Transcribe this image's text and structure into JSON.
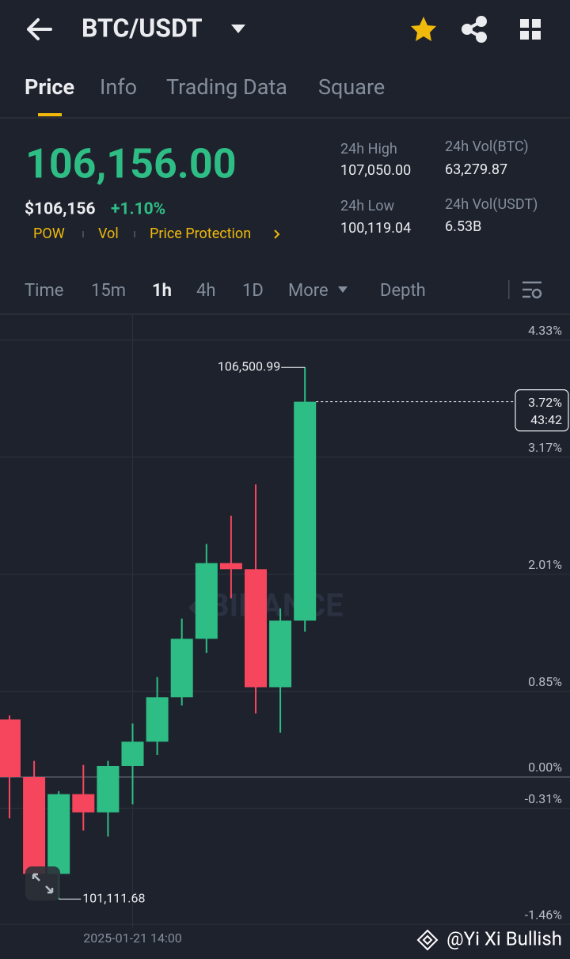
{
  "header": {
    "title": "BTC/USDT"
  },
  "tabs": [
    "Price",
    "Info",
    "Trading Data",
    "Square"
  ],
  "price": {
    "last": "106,156.00",
    "usd": "$106,156",
    "change": "+1.10%"
  },
  "links": [
    "POW",
    "Vol",
    "Price Protection"
  ],
  "stats": [
    {
      "label": "24h High",
      "value": "107,050.00"
    },
    {
      "label": "24h Low",
      "value": "100,119.04"
    },
    {
      "label": "24h Vol(BTC)",
      "value": "63,279.87"
    },
    {
      "label": "24h Vol(USDT)",
      "value": "6.53B"
    }
  ],
  "intervals": [
    "Time",
    "15m",
    "1h",
    "4h",
    "1D",
    "More",
    "Depth"
  ],
  "chart_data": {
    "type": "candlestick",
    "categories": [
      null,
      null,
      null,
      null,
      null,
      "2025-01-21 14:00",
      null,
      null,
      null,
      null,
      null,
      null,
      null
    ],
    "open": [
      0.57,
      0.0,
      -0.96,
      -0.17,
      -0.35,
      0.11,
      0.35,
      0.79,
      1.37,
      2.12,
      2.06,
      0.89,
      1.55
    ],
    "high": [
      0.61,
      0.16,
      -0.14,
      0.12,
      0.16,
      0.53,
      0.99,
      1.57,
      2.31,
      2.59,
      2.9,
      1.67,
      4.06
    ],
    "low": [
      -0.41,
      -1.0,
      -1.21,
      -0.53,
      -0.59,
      -0.27,
      0.22,
      0.71,
      1.23,
      1.77,
      0.63,
      0.44,
      1.44
    ],
    "close": [
      0.0,
      -0.96,
      -0.17,
      -0.35,
      0.11,
      0.35,
      0.79,
      1.37,
      2.12,
      2.06,
      0.89,
      1.55,
      3.72
    ],
    "up_color": "#2ebd85",
    "down_color": "#f6465d",
    "ylim": [
      -1.49,
      4.58
    ],
    "yticks": [
      {
        "value": 4.33,
        "label": "4.33%"
      },
      {
        "value": 3.17,
        "label": "3.17%"
      },
      {
        "value": 2.01,
        "label": "2.01%"
      },
      {
        "value": 0.85,
        "label": "0.85%"
      },
      {
        "value": 0,
        "label": "0.00%"
      },
      {
        "value": -0.31,
        "label": "-0.31%"
      },
      {
        "value": -1.46,
        "label": "-1.46%"
      }
    ],
    "max_label": "106,500.99",
    "min_label": "101,111.68",
    "last_price": {
      "value": 3.72,
      "label": "3.72%"
    },
    "countdown": "43:42",
    "watermark": "BINANCE"
  },
  "credit": "@Yi Xi Bullish"
}
